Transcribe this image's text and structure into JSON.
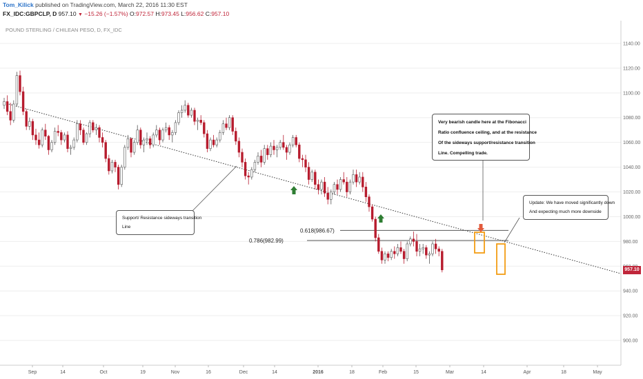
{
  "header": {
    "author": "Tom_Kilick",
    "publish_text": "published on TradingView.com, March 22, 2016 11:30 EST",
    "symbol": "FX_IDC:GBPCLP, D",
    "last": "957.10",
    "change_arrow": "▼",
    "change": "−15.26 (−1.57%)",
    "open_label": "O:",
    "open": "972.57",
    "high_label": "H:",
    "high": "973.45",
    "low_label": "L:",
    "low": "956.62",
    "close_label": "C:",
    "close": "957.10"
  },
  "instrument_title": "POUND STERLING / CHILEAN PESO, D, FX_IDC",
  "callouts": {
    "top": [
      "Very bearish candle here at the Fibonacci",
      "Ratio confluence ceiling, and at the resistance",
      "Of the sideways support/resistance transition",
      "Line. Compelling trade."
    ],
    "left": [
      "Support/ Resistance sideways transition",
      "Line"
    ],
    "right": [
      "Update: We have moved significantly down",
      "And expecting much more downside"
    ]
  },
  "colors": {
    "up_candle_fill": "#ffffff",
    "up_candle_border": "#555555",
    "down_candle": "#b71c2e",
    "fib_line": "#555555",
    "trendline": "#333333",
    "highlight_box": "#f39c12",
    "green_arrow": "#2e7d32",
    "red_arrow": "#e25a3c",
    "last_price_tag": "#c0263a",
    "grid": "#eeeeee"
  },
  "chart_data": {
    "type": "candlestick",
    "title": "POUND STERLING / CHILEAN PESO, D, FX_IDC",
    "ylim": [
      880,
      1150
    ],
    "yticks": [
      900,
      920,
      940,
      960,
      980,
      1000,
      1020,
      1040,
      1060,
      1080,
      1100,
      1120,
      1140
    ],
    "xtick_labels": [
      "Sep",
      "14",
      "Oct",
      "19",
      "Nov",
      "16",
      "Dec",
      "14",
      "2016",
      "18",
      "Feb",
      "15",
      "Mar",
      "14",
      "Apr",
      "18",
      "May"
    ],
    "bold_xtick": "2016",
    "last_price": 957.1,
    "fibonacci_levels": [
      {
        "label": "0.618(986.67)",
        "value": 986.67
      },
      {
        "label": "0.786(982.99)",
        "value": 982.99
      }
    ],
    "trendline": {
      "from": {
        "bar": 0,
        "value": 1092
      },
      "to": {
        "bar": 200,
        "value": 950
      }
    },
    "candles": [
      [
        1090,
        1096,
        1087,
        1093
      ],
      [
        1093,
        1098,
        1082,
        1085
      ],
      [
        1085,
        1092,
        1074,
        1078
      ],
      [
        1078,
        1094,
        1076,
        1091
      ],
      [
        1091,
        1117,
        1089,
        1114
      ],
      [
        1114,
        1118,
        1098,
        1101
      ],
      [
        1101,
        1105,
        1082,
        1085
      ],
      [
        1085,
        1087,
        1070,
        1073
      ],
      [
        1073,
        1080,
        1070,
        1077
      ],
      [
        1077,
        1079,
        1062,
        1066
      ],
      [
        1066,
        1071,
        1058,
        1062
      ],
      [
        1062,
        1068,
        1055,
        1058
      ],
      [
        1058,
        1072,
        1056,
        1070
      ],
      [
        1070,
        1075,
        1062,
        1065
      ],
      [
        1065,
        1066,
        1050,
        1054
      ],
      [
        1054,
        1062,
        1052,
        1060
      ],
      [
        1060,
        1072,
        1058,
        1069
      ],
      [
        1069,
        1074,
        1065,
        1068
      ],
      [
        1068,
        1070,
        1058,
        1062
      ],
      [
        1062,
        1068,
        1060,
        1066
      ],
      [
        1066,
        1069,
        1052,
        1055
      ],
      [
        1055,
        1058,
        1050,
        1056
      ],
      [
        1056,
        1064,
        1054,
        1062
      ],
      [
        1062,
        1078,
        1060,
        1075
      ],
      [
        1075,
        1078,
        1066,
        1070
      ],
      [
        1070,
        1072,
        1058,
        1060
      ],
      [
        1060,
        1068,
        1058,
        1067
      ],
      [
        1067,
        1078,
        1064,
        1076
      ],
      [
        1076,
        1078,
        1068,
        1070
      ],
      [
        1070,
        1075,
        1066,
        1072
      ],
      [
        1072,
        1074,
        1060,
        1064
      ],
      [
        1064,
        1068,
        1056,
        1060
      ],
      [
        1060,
        1062,
        1044,
        1047
      ],
      [
        1047,
        1050,
        1034,
        1037
      ],
      [
        1037,
        1046,
        1035,
        1044
      ],
      [
        1044,
        1046,
        1036,
        1040
      ],
      [
        1040,
        1042,
        1022,
        1026
      ],
      [
        1026,
        1042,
        1024,
        1040
      ],
      [
        1040,
        1058,
        1038,
        1056
      ],
      [
        1056,
        1066,
        1054,
        1063
      ],
      [
        1063,
        1064,
        1048,
        1052
      ],
      [
        1052,
        1062,
        1050,
        1060
      ],
      [
        1060,
        1074,
        1058,
        1070
      ],
      [
        1070,
        1072,
        1055,
        1058
      ],
      [
        1058,
        1064,
        1052,
        1062
      ],
      [
        1062,
        1068,
        1058,
        1063
      ],
      [
        1063,
        1065,
        1055,
        1058
      ],
      [
        1058,
        1068,
        1056,
        1066
      ],
      [
        1066,
        1074,
        1064,
        1070
      ],
      [
        1070,
        1072,
        1058,
        1062
      ],
      [
        1062,
        1072,
        1060,
        1070
      ],
      [
        1070,
        1076,
        1068,
        1072
      ],
      [
        1072,
        1074,
        1062,
        1066
      ],
      [
        1066,
        1070,
        1060,
        1068
      ],
      [
        1068,
        1078,
        1066,
        1076
      ],
      [
        1076,
        1086,
        1074,
        1084
      ],
      [
        1084,
        1090,
        1080,
        1086
      ],
      [
        1086,
        1094,
        1084,
        1090
      ],
      [
        1090,
        1092,
        1080,
        1082
      ],
      [
        1082,
        1088,
        1080,
        1086
      ],
      [
        1086,
        1088,
        1074,
        1077
      ],
      [
        1077,
        1080,
        1070,
        1078
      ],
      [
        1078,
        1082,
        1074,
        1076
      ],
      [
        1076,
        1078,
        1064,
        1067
      ],
      [
        1067,
        1070,
        1052,
        1055
      ],
      [
        1055,
        1064,
        1053,
        1062
      ],
      [
        1062,
        1066,
        1056,
        1058
      ],
      [
        1058,
        1064,
        1056,
        1062
      ],
      [
        1062,
        1070,
        1060,
        1068
      ],
      [
        1068,
        1078,
        1066,
        1075
      ],
      [
        1075,
        1080,
        1070,
        1072
      ],
      [
        1072,
        1082,
        1070,
        1080
      ],
      [
        1080,
        1082,
        1066,
        1069
      ],
      [
        1069,
        1072,
        1058,
        1061
      ],
      [
        1061,
        1064,
        1048,
        1052
      ],
      [
        1052,
        1055,
        1040,
        1044
      ],
      [
        1044,
        1047,
        1030,
        1033
      ],
      [
        1033,
        1036,
        1026,
        1032
      ],
      [
        1032,
        1040,
        1030,
        1038
      ],
      [
        1038,
        1046,
        1036,
        1044
      ],
      [
        1044,
        1052,
        1042,
        1049
      ],
      [
        1049,
        1054,
        1040,
        1044
      ],
      [
        1044,
        1058,
        1042,
        1055
      ],
      [
        1055,
        1058,
        1046,
        1050
      ],
      [
        1050,
        1060,
        1048,
        1057
      ],
      [
        1057,
        1062,
        1050,
        1054
      ],
      [
        1054,
        1058,
        1048,
        1056
      ],
      [
        1056,
        1062,
        1054,
        1060
      ],
      [
        1060,
        1066,
        1054,
        1056
      ],
      [
        1056,
        1058,
        1046,
        1052
      ],
      [
        1052,
        1060,
        1050,
        1058
      ],
      [
        1058,
        1066,
        1056,
        1064
      ],
      [
        1064,
        1066,
        1056,
        1058
      ],
      [
        1058,
        1060,
        1044,
        1047
      ],
      [
        1047,
        1050,
        1040,
        1046
      ],
      [
        1046,
        1050,
        1036,
        1040
      ],
      [
        1040,
        1044,
        1026,
        1030
      ],
      [
        1030,
        1038,
        1028,
        1036
      ],
      [
        1036,
        1038,
        1022,
        1026
      ],
      [
        1026,
        1030,
        1018,
        1022
      ],
      [
        1022,
        1030,
        1018,
        1028
      ],
      [
        1028,
        1032,
        1016,
        1019
      ],
      [
        1019,
        1024,
        1010,
        1014
      ],
      [
        1014,
        1022,
        1010,
        1020
      ],
      [
        1020,
        1028,
        1018,
        1026
      ],
      [
        1026,
        1030,
        1018,
        1022
      ],
      [
        1022,
        1032,
        1020,
        1030
      ],
      [
        1030,
        1036,
        1026,
        1028
      ],
      [
        1028,
        1032,
        1016,
        1020
      ],
      [
        1020,
        1030,
        1018,
        1028
      ],
      [
        1028,
        1038,
        1026,
        1034
      ],
      [
        1034,
        1038,
        1024,
        1028
      ],
      [
        1028,
        1036,
        1026,
        1032
      ],
      [
        1032,
        1036,
        1020,
        1024
      ],
      [
        1024,
        1028,
        1012,
        1016
      ],
      [
        1016,
        1018,
        1004,
        1008
      ],
      [
        1008,
        1010,
        996,
        998
      ],
      [
        998,
        1000,
        980,
        983
      ],
      [
        983,
        986,
        970,
        972
      ],
      [
        972,
        975,
        962,
        965
      ],
      [
        965,
        972,
        962,
        970
      ],
      [
        970,
        972,
        964,
        967
      ],
      [
        967,
        974,
        965,
        972
      ],
      [
        972,
        976,
        966,
        970
      ],
      [
        970,
        978,
        968,
        975
      ],
      [
        975,
        980,
        970,
        972
      ],
      [
        972,
        974,
        962,
        966
      ],
      [
        966,
        980,
        964,
        978
      ],
      [
        978,
        984,
        976,
        982
      ],
      [
        982,
        988,
        976,
        980
      ],
      [
        980,
        986,
        968,
        972
      ],
      [
        972,
        978,
        968,
        974
      ],
      [
        974,
        978,
        970,
        975
      ],
      [
        975,
        977,
        966,
        969
      ],
      [
        969,
        972,
        962,
        970
      ],
      [
        970,
        980,
        968,
        978
      ],
      [
        978,
        982,
        970,
        974
      ],
      [
        974,
        976,
        968,
        972
      ],
      [
        972,
        974,
        955,
        957
      ]
    ]
  }
}
